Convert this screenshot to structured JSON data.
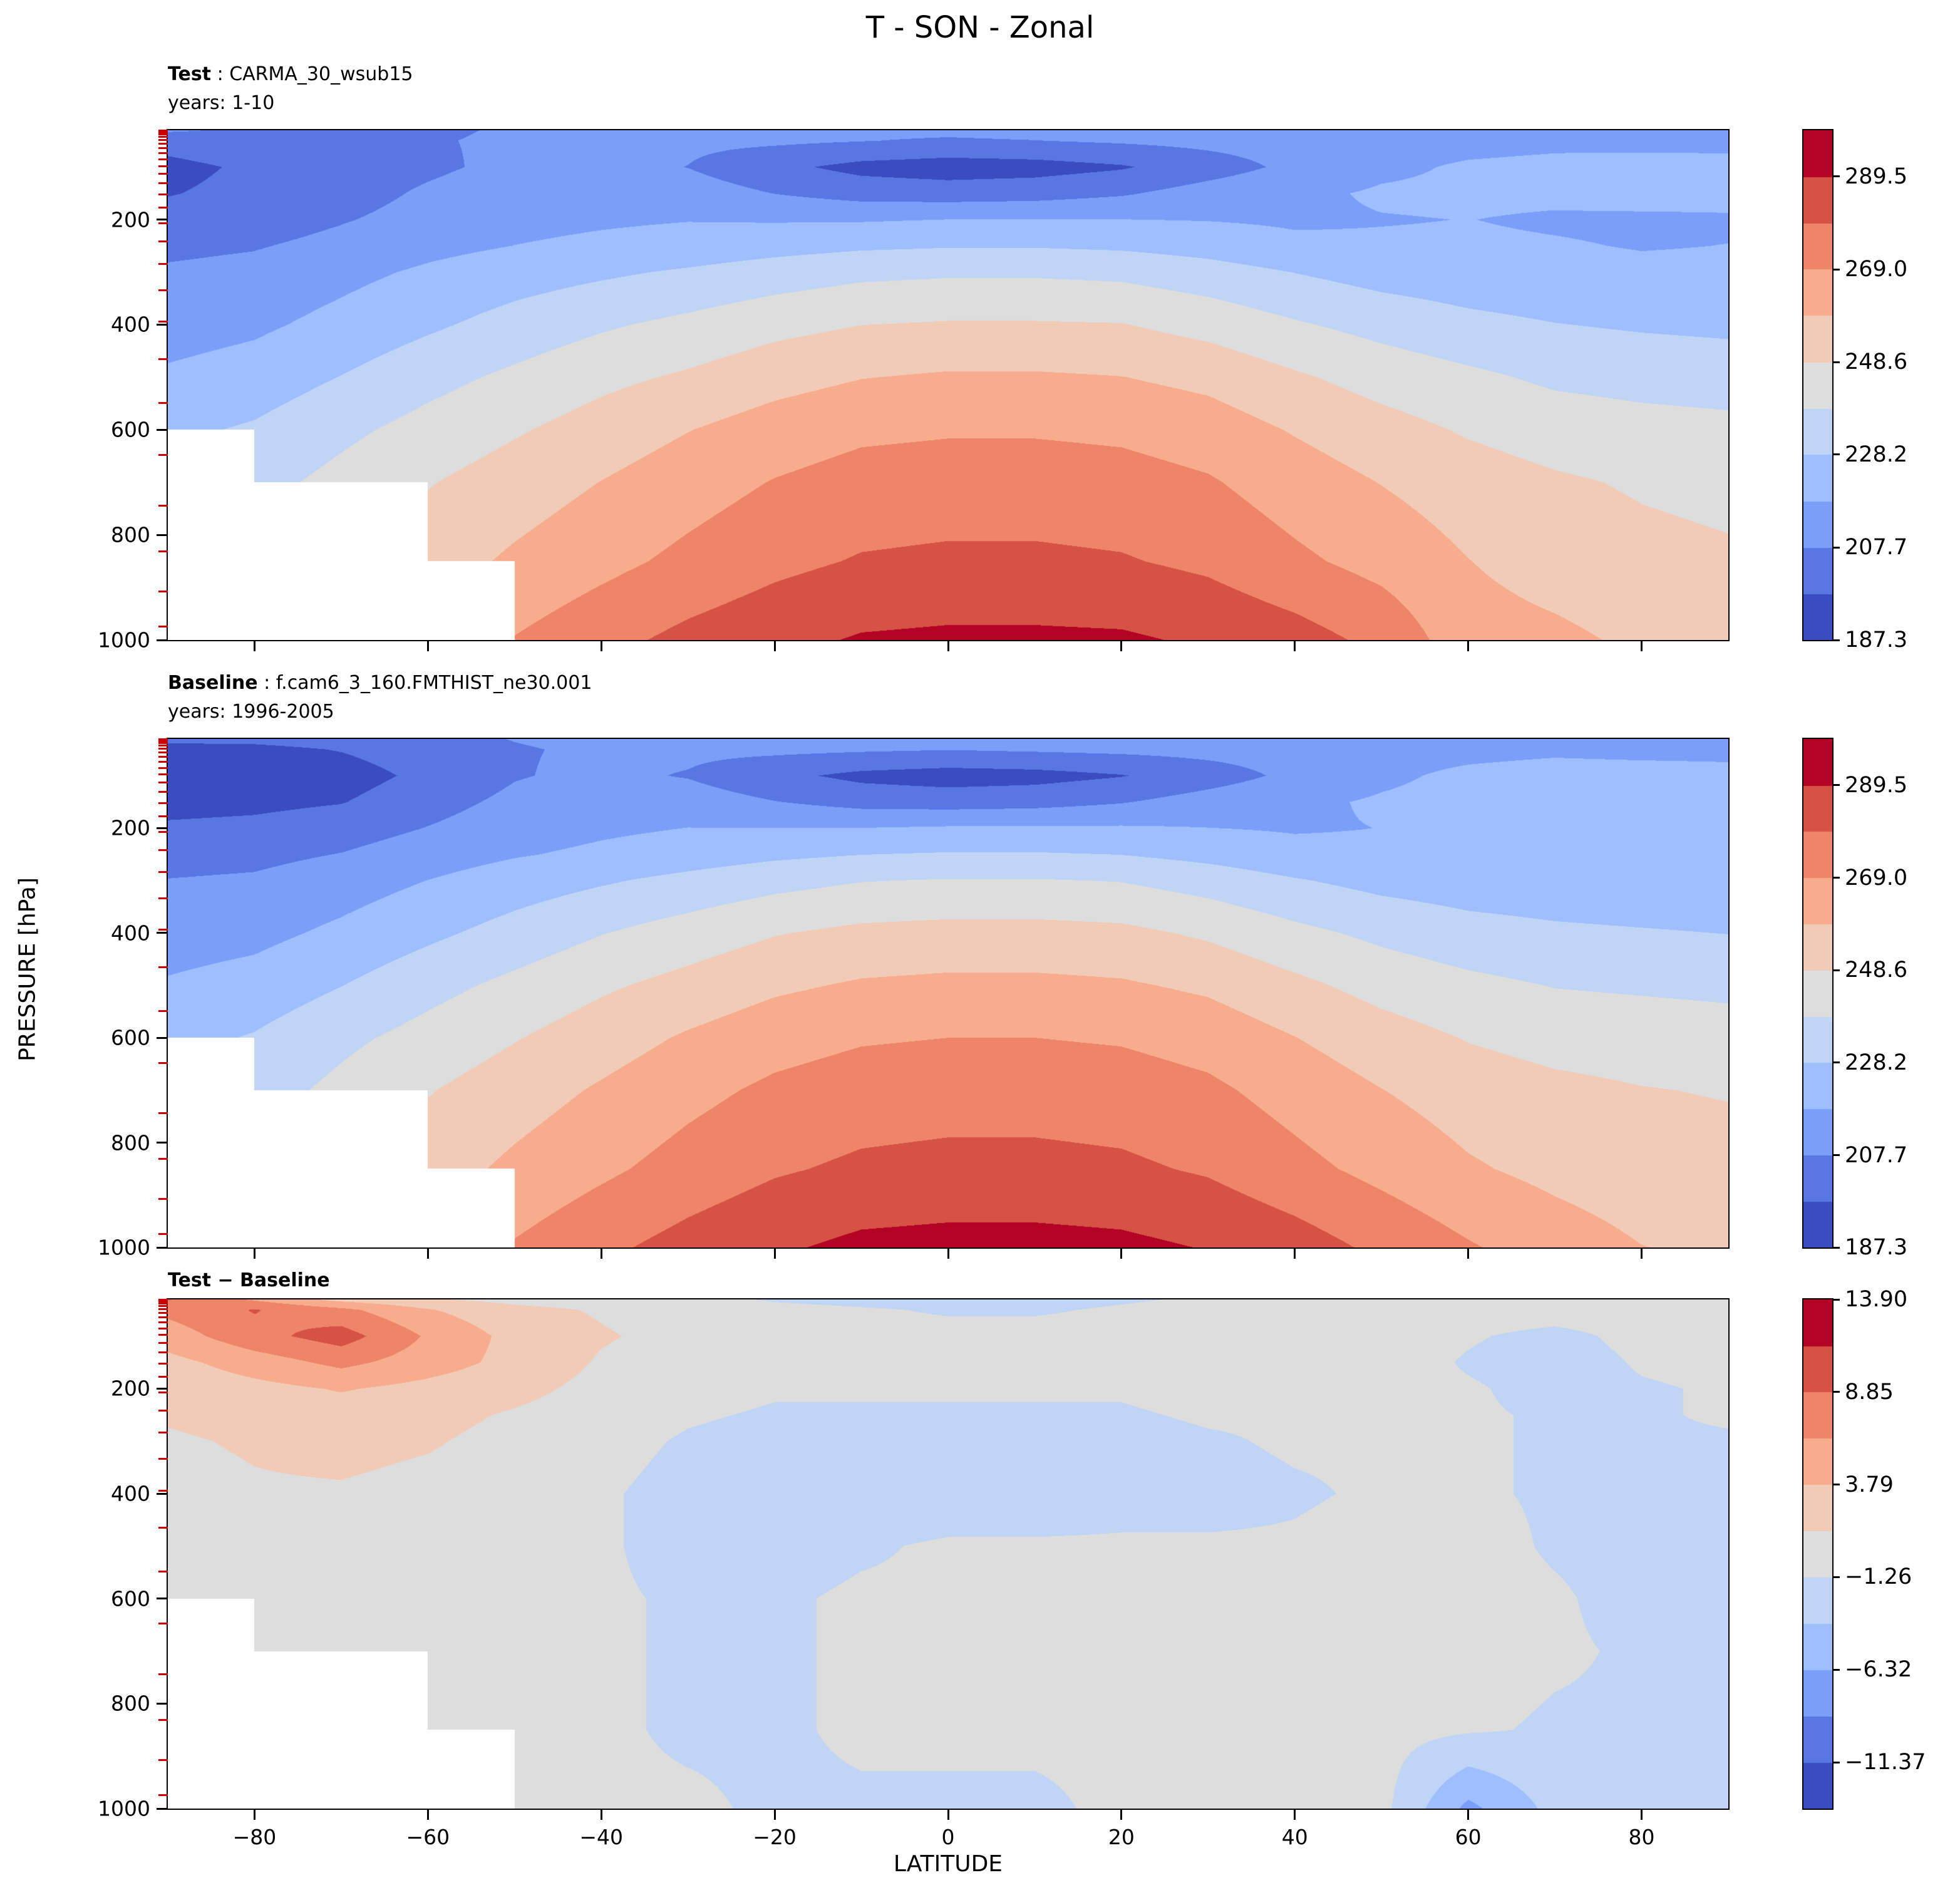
{
  "title": "T - SON - Zonal",
  "background": "#ffffff",
  "axes": {
    "xlabel": "LATITUDE",
    "ylabel": "PRESSURE [hPa]",
    "xlim": [
      -90,
      90
    ],
    "ylim": [
      1000,
      30
    ],
    "xtick_values": [
      -80,
      -60,
      -40,
      -20,
      0,
      20,
      40,
      60,
      80
    ],
    "xtick_labels": [
      "−80",
      "−60",
      "−40",
      "−20",
      "0",
      "20",
      "40",
      "60",
      "80"
    ],
    "ytick_values": [
      200,
      400,
      600,
      800,
      1000
    ],
    "ytick_labels": [
      "200",
      "400",
      "600",
      "800",
      "1000"
    ],
    "model_level_tick_pressures": [
      31,
      34,
      38,
      43,
      49,
      56,
      64,
      74,
      85,
      98,
      113,
      131,
      152,
      177,
      207,
      242,
      284,
      334,
      394,
      465,
      549,
      648,
      744,
      831,
      908,
      974
    ],
    "model_level_tick_color": "#cc0000"
  },
  "panels": [
    {
      "name": "Test",
      "run": " : CARMA_30_wsub15",
      "years": "years: 1-10"
    },
    {
      "name": "Baseline",
      "run": " : f.cam6_3_160.FMTHIST_ne30.001",
      "years": "years: 1996-2005"
    },
    {
      "name": "Test − Baseline",
      "run": "",
      "years": ""
    }
  ],
  "chart_data": [
    {
      "type": "heatmap",
      "panel": "Test",
      "title": "Test : CARMA_30_wsub15, years 1-10",
      "x_name": "LATITUDE (degrees)",
      "y_name": "PRESSURE (hPa)",
      "x": [
        -90,
        -80,
        -70,
        -60,
        -50,
        -40,
        -30,
        -20,
        -10,
        0,
        10,
        20,
        30,
        40,
        50,
        60,
        70,
        80,
        90
      ],
      "y": [
        30,
        50,
        100,
        150,
        200,
        250,
        300,
        400,
        500,
        600,
        700,
        850,
        1000
      ],
      "values": [
        [
          209,
          206,
          205,
          206.5,
          208.5,
          210,
          210.5,
          210.5,
          210,
          210,
          211,
          211.5,
          213,
          214.5,
          216,
          217,
          217,
          216,
          216
        ],
        [
          201,
          204,
          205,
          207,
          209,
          210,
          210,
          209.5,
          208,
          206.5,
          207.5,
          209,
          210.5,
          212,
          214,
          215,
          216,
          215,
          215
        ],
        [
          195,
          199,
          203,
          206,
          210,
          211.5,
          207.5,
          200,
          194.5,
          192.5,
          193.5,
          196.5,
          203,
          210,
          216,
          219,
          220,
          221.5,
          221
        ],
        [
          197,
          200,
          204,
          209,
          213,
          215,
          213,
          207.5,
          203.5,
          202.5,
          203.5,
          206.5,
          212,
          216,
          219,
          219.5,
          219.5,
          221,
          220.5
        ],
        [
          201,
          203,
          207,
          211,
          215,
          216.5,
          217.5,
          217,
          217,
          218,
          218,
          218,
          217.5,
          216.5,
          217.5,
          218,
          217,
          216.5,
          217
        ],
        [
          205.5,
          207,
          210.5,
          215,
          218,
          220,
          222,
          224.5,
          226.5,
          227.5,
          227.5,
          226.5,
          224,
          220,
          219,
          219,
          218.5,
          217.5,
          218
        ],
        [
          209,
          210.5,
          215,
          219.5,
          223.5,
          226.5,
          229.5,
          233,
          236,
          237,
          237,
          236,
          232.5,
          228,
          224,
          222,
          220.5,
          219.5,
          219.5
        ],
        [
          213.5,
          216,
          221,
          226.5,
          232,
          237,
          241,
          245.5,
          248.5,
          249.5,
          249.5,
          249,
          245,
          239.5,
          235,
          231,
          228.5,
          227,
          226
        ],
        [
          219.5,
          222.5,
          228.5,
          235,
          240.5,
          246,
          250,
          255,
          258.5,
          260,
          260,
          259,
          256,
          250,
          244.5,
          240.5,
          236.5,
          235,
          234
        ],
        [
          226,
          229.5,
          236,
          242,
          247.5,
          253,
          258.5,
          263.5,
          267,
          268,
          268,
          267,
          264,
          258,
          252.5,
          247.5,
          244,
          242,
          241
        ],
        [
          null,
          235,
          241.5,
          248,
          253.5,
          259,
          264.5,
          269.5,
          273,
          274,
          274,
          273,
          270,
          264,
          258.5,
          253.5,
          250,
          247.5,
          246
        ],
        [
          null,
          null,
          null,
          254,
          260.5,
          266,
          271.5,
          276.5,
          280,
          281,
          281,
          280,
          277,
          271,
          265.5,
          259,
          254.5,
          251.5,
          250
        ],
        [
          null,
          null,
          null,
          null,
          269.5,
          276,
          282,
          286.5,
          290.5,
          291.5,
          291.5,
          291,
          288,
          283.5,
          276.5,
          263,
          261,
          257,
          255
        ]
      ],
      "levels": [
        187.3,
        197.5,
        207.7,
        217.9,
        228.2,
        238.4,
        248.6,
        258.8,
        269.0,
        279.2,
        289.5,
        299.7
      ],
      "colors": [
        "#3b4cc0",
        "#5977e3",
        "#7b9ff9",
        "#9ebeff",
        "#c0d4f5",
        "#dddddd",
        "#f2cbb7",
        "#f7ac8e",
        "#ee8468",
        "#d65244",
        "#b40426"
      ],
      "colorbar_tick_values": [
        289.5,
        269.0,
        248.6,
        228.2,
        207.7,
        187.3
      ],
      "colorbar_tick_labels": [
        "289.5",
        "269.0",
        "248.6",
        "228.2",
        "207.7",
        "187.3"
      ]
    },
    {
      "type": "heatmap",
      "panel": "Baseline",
      "title": "Baseline : f.cam6_3_160.FMTHIST_ne30.001, years 1996-2005",
      "x_name": "LATITUDE (degrees)",
      "y_name": "PRESSURE (hPa)",
      "x": [
        -90,
        -80,
        -70,
        -60,
        -50,
        -40,
        -30,
        -20,
        -10,
        0,
        10,
        20,
        30,
        40,
        50,
        60,
        70,
        80,
        90
      ],
      "y": [
        30,
        50,
        100,
        150,
        200,
        250,
        300,
        400,
        500,
        600,
        700,
        850,
        1000
      ],
      "values": [
        [
          200,
          200,
          202,
          205,
          208,
          210,
          211,
          212,
          212,
          212,
          213,
          213,
          214,
          215,
          216,
          217,
          217,
          216,
          216
        ],
        [
          194,
          195,
          198,
          203,
          207,
          209,
          210,
          210,
          209,
          208,
          209,
          210,
          211,
          212,
          214,
          215,
          216,
          215,
          215
        ],
        [
          190,
          191,
          193,
          200,
          207,
          210,
          207,
          200,
          195,
          193,
          194,
          197,
          203,
          210,
          216,
          220,
          222,
          222,
          221
        ],
        [
          194,
          195,
          197,
          204,
          210,
          214,
          213,
          208,
          204,
          203,
          204,
          207,
          212,
          216,
          219,
          221,
          222,
          222,
          221
        ],
        [
          199,
          200,
          203,
          208,
          213,
          216,
          218,
          218,
          218,
          219,
          219,
          219,
          218,
          217,
          218,
          219,
          219,
          218,
          218
        ],
        [
          204,
          205,
          208,
          213,
          217,
          220,
          223,
          226,
          228,
          229,
          229,
          228,
          225,
          221,
          220,
          220,
          220,
          219,
          219
        ],
        [
          208,
          209,
          213,
          218,
          223,
          227,
          231,
          235,
          238,
          239,
          239,
          238,
          234,
          229,
          225,
          223,
          222,
          221,
          221
        ],
        [
          213,
          215,
          220,
          226,
          232,
          238,
          243,
          248,
          251,
          252,
          252,
          251,
          247,
          241,
          236,
          232,
          230,
          229,
          228
        ],
        [
          219,
          222,
          228,
          235,
          241,
          247,
          252,
          257,
          260,
          261,
          261,
          260,
          257,
          251,
          245,
          241,
          238,
          237,
          236
        ],
        [
          225,
          229,
          236,
          242,
          248,
          254,
          260,
          265,
          268,
          269,
          269,
          268,
          265,
          259,
          253,
          248,
          245,
          244,
          243
        ],
        [
          null,
          234,
          241,
          248,
          254,
          260,
          266,
          271,
          274,
          275,
          275,
          274,
          271,
          265,
          259,
          254,
          251,
          249,
          248
        ],
        [
          null,
          null,
          null,
          254,
          261,
          267,
          273,
          278,
          281,
          282,
          282,
          281,
          278,
          272,
          266,
          260,
          256,
          253,
          252
        ],
        [
          null,
          null,
          null,
          null,
          270,
          277,
          283,
          288,
          292,
          293,
          293,
          292,
          289,
          284,
          277,
          270,
          264,
          259,
          257
        ]
      ],
      "levels": [
        187.3,
        197.5,
        207.7,
        217.9,
        228.2,
        238.4,
        248.6,
        258.8,
        269.0,
        279.2,
        289.5,
        299.7
      ],
      "colors": [
        "#3b4cc0",
        "#5977e3",
        "#7b9ff9",
        "#9ebeff",
        "#c0d4f5",
        "#dddddd",
        "#f2cbb7",
        "#f7ac8e",
        "#ee8468",
        "#d65244",
        "#b40426"
      ],
      "colorbar_tick_values": [
        289.5,
        269.0,
        248.6,
        228.2,
        207.7,
        187.3
      ],
      "colorbar_tick_labels": [
        "289.5",
        "269.0",
        "248.6",
        "228.2",
        "207.7",
        "187.3"
      ]
    },
    {
      "type": "heatmap",
      "panel": "Test − Baseline",
      "title": "Test − Baseline difference",
      "x_name": "LATITUDE (degrees)",
      "y_name": "PRESSURE (hPa)",
      "x": [
        -90,
        -80,
        -70,
        -60,
        -50,
        -40,
        -30,
        -20,
        -10,
        0,
        10,
        20,
        30,
        40,
        50,
        60,
        70,
        80,
        90
      ],
      "y": [
        30,
        50,
        100,
        150,
        200,
        250,
        300,
        400,
        500,
        600,
        700,
        850,
        1000
      ],
      "values": [
        [
          9,
          6,
          3,
          1.5,
          0.5,
          0,
          -0.5,
          -1.5,
          -2,
          -2,
          -2,
          -1.5,
          -1,
          -0.5,
          0,
          0,
          0,
          0,
          0
        ],
        [
          7,
          9,
          7,
          4,
          2,
          1,
          0,
          -0.5,
          -1,
          -1.5,
          -1.5,
          -1,
          -0.5,
          0,
          0,
          0,
          0,
          0,
          0
        ],
        [
          5,
          8,
          10,
          6,
          3,
          1.5,
          0.5,
          0,
          -0.5,
          -0.5,
          -0.5,
          -0.5,
          0,
          0,
          0,
          -1,
          -2,
          -0.5,
          0
        ],
        [
          3,
          5,
          7,
          5,
          3,
          1,
          0,
          -0.5,
          -0.5,
          -0.5,
          -0.5,
          -0.5,
          0,
          0,
          0,
          -1.5,
          -2.5,
          -1,
          -0.5
        ],
        [
          2,
          3,
          4,
          3,
          2,
          0.5,
          -0.5,
          -1,
          -1,
          -1,
          -1,
          -1,
          -0.5,
          -0.5,
          -0.5,
          -1,
          -2,
          -1.5,
          -1
        ],
        [
          1.5,
          2,
          2.5,
          2,
          1,
          0,
          -1,
          -1.5,
          -1.5,
          -1.5,
          -1.5,
          -1.5,
          -1,
          -1,
          -1,
          -1,
          -1.5,
          -1.5,
          -1
        ],
        [
          1,
          1.5,
          2,
          1.5,
          0.5,
          -0.5,
          -1.5,
          -2,
          -2,
          -2,
          -2,
          -2,
          -1.5,
          -1,
          -1,
          -1,
          -1.5,
          -1.5,
          -1.5
        ],
        [
          0.5,
          1,
          1,
          0.5,
          0,
          -1,
          -2,
          -2.5,
          -2.5,
          -2.5,
          -2.5,
          -2,
          -2,
          -1.5,
          -1,
          -1,
          -1.5,
          -2,
          -2
        ],
        [
          0.5,
          0.5,
          0.5,
          0,
          -0.5,
          -1,
          -2,
          -2,
          -1.5,
          -1,
          -1,
          -1,
          -1,
          -1,
          -0.5,
          -0.5,
          -1.5,
          -2,
          -2
        ],
        [
          1,
          0.5,
          0,
          0,
          -0.5,
          -1,
          -1.5,
          -1.5,
          -1,
          -1,
          -1,
          -1,
          -1,
          -1,
          -0.5,
          -0.5,
          -1,
          -2,
          -2
        ],
        [
          null,
          1,
          0.5,
          0,
          -0.5,
          -1,
          -1.5,
          -1.5,
          -1,
          -1,
          -1,
          -1,
          -1,
          -1,
          -0.5,
          -0.5,
          -1,
          -1.5,
          -2
        ],
        [
          null,
          null,
          null,
          0,
          -0.5,
          -1,
          -1.5,
          -1.5,
          -1,
          -1,
          -1,
          -1,
          -1,
          -1,
          -0.5,
          -1,
          -1.5,
          -1.5,
          -2
        ],
        [
          null,
          null,
          null,
          null,
          -0.5,
          -1,
          -1,
          -1.5,
          -1.5,
          -1.5,
          -1.5,
          -1,
          -1,
          -0.5,
          -0.5,
          -7,
          -3,
          -2,
          -2
        ]
      ],
      "levels": [
        -13.9,
        -11.37,
        -8.84,
        -6.32,
        -3.79,
        -1.26,
        1.26,
        3.79,
        6.32,
        8.84,
        11.37,
        13.9
      ],
      "colors": [
        "#3b4cc0",
        "#5977e3",
        "#7b9ff9",
        "#9ebeff",
        "#c0d4f5",
        "#dddddd",
        "#f2cbb7",
        "#f7ac8e",
        "#ee8468",
        "#d65244",
        "#b40426"
      ],
      "colorbar_tick_values": [
        13.9,
        8.85,
        3.79,
        -1.26,
        -6.32,
        -11.37
      ],
      "colorbar_tick_labels": [
        "13.90",
        "8.85",
        "3.79",
        "−1.26",
        "−6.32",
        "−11.37"
      ]
    }
  ]
}
